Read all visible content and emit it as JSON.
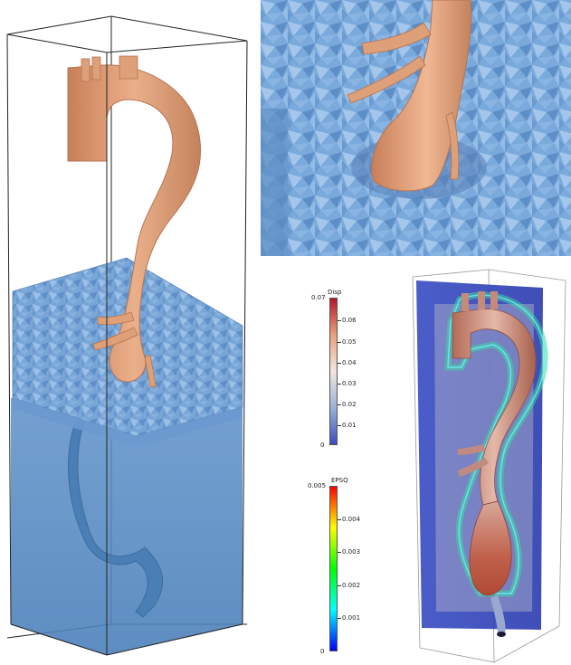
{
  "scene": {
    "colors": {
      "aorta": "#e4a47c",
      "aorta_shade": "#c4825c",
      "mesh": "#6f9fd4",
      "mesh_dark": "#4d79ad",
      "mesh_light": "#a8c8ea",
      "tissue_transparent": "#4f86c0",
      "background": "#ffffff"
    }
  },
  "colorbar_disp": {
    "title": "Disp",
    "max_label": "0.07",
    "min_label": "0",
    "ticks": [
      "0.06",
      "0.05",
      "0.04",
      "0.03",
      "0.02",
      "0.01"
    ],
    "colors": [
      "#b2182b",
      "#e8a07c",
      "#f2e6e0",
      "#9ab2d8",
      "#3b4cc0"
    ]
  },
  "colorbar_epsq": {
    "title": "EPSQ",
    "max_label": "0.005",
    "min_label": "0",
    "ticks": [
      "0.004",
      "0.003",
      "0.002",
      "0.001"
    ],
    "colors": [
      "#ff0000",
      "#ffff00",
      "#00ff00",
      "#00ffff",
      "#0000ff"
    ]
  }
}
